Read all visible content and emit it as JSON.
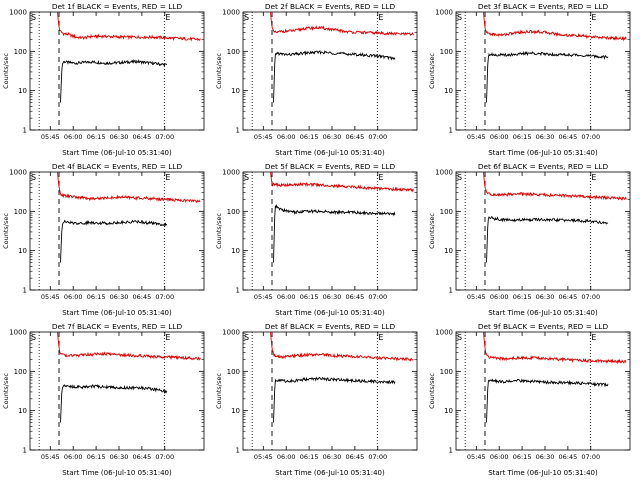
{
  "colors": {
    "events": "#000000",
    "lld": "#dd0000",
    "axis": "#000000",
    "background": "#ffffff"
  },
  "shared": {
    "ylabel": "Counts/sec",
    "xlabel": "Start Time (06-Jul-10 05:31:40)",
    "x_tick_labels_a": [
      "05:45",
      "06:00",
      "06:15",
      "06:30",
      "06:45",
      "07:00"
    ],
    "x_tick_labels_b": [
      "05:45",
      "06:00",
      "06:15",
      "06:30",
      "06:45",
      "07:00"
    ],
    "y_tick_labels": [
      "1",
      "10",
      "100",
      "1000"
    ],
    "marker_S": "S",
    "marker_E": "E"
  },
  "chart_data": [
    {
      "type": "line",
      "title": "Det 1f BLACK = Events, RED = LLD",
      "x_unit": "minutes after 05:31:40",
      "xlim": [
        0,
        114
      ],
      "ylim": [
        1,
        1000
      ],
      "yscale": "log",
      "x_ticks": [
        13.3,
        28.3,
        43.3,
        58.3,
        73.3,
        88.3
      ],
      "vline_dotted": [
        6,
        88
      ],
      "vline_dashed": 19,
      "start_marker_x": 0,
      "end_marker_x": 88,
      "series": [
        {
          "name": "Events",
          "color": "black",
          "x": [
            20,
            21,
            22,
            25,
            30,
            35,
            40,
            50,
            60,
            70,
            80,
            90
          ],
          "y": [
            5,
            45,
            55,
            52,
            50,
            52,
            54,
            50,
            52,
            55,
            50,
            45
          ]
        },
        {
          "name": "LLD",
          "color": "red",
          "x": [
            18,
            18.5,
            19,
            20,
            22,
            25,
            30,
            35,
            40,
            50,
            60,
            70,
            80,
            90,
            100,
            112
          ],
          "y": [
            1000,
            600,
            400,
            320,
            280,
            270,
            230,
            220,
            240,
            240,
            230,
            230,
            230,
            220,
            210,
            200
          ]
        }
      ]
    },
    {
      "type": "line",
      "title": "Det 2f BLACK = Events, RED = LLD",
      "x_unit": "minutes after 05:31:40",
      "xlim": [
        0,
        114
      ],
      "ylim": [
        1,
        1000
      ],
      "yscale": "log",
      "x_ticks": [
        13.3,
        28.3,
        43.3,
        58.3,
        73.3,
        88.3
      ],
      "vline_dotted": [
        6,
        88
      ],
      "vline_dashed": 19,
      "start_marker_x": 0,
      "end_marker_x": 88,
      "series": [
        {
          "name": "Events",
          "color": "black",
          "x": [
            20,
            21,
            22,
            25,
            30,
            35,
            40,
            50,
            60,
            70,
            80,
            90,
            100
          ],
          "y": [
            5,
            80,
            90,
            85,
            82,
            85,
            90,
            95,
            90,
            85,
            80,
            75,
            65
          ]
        },
        {
          "name": "LLD",
          "color": "red",
          "x": [
            18,
            18.5,
            19,
            20,
            22,
            25,
            30,
            35,
            40,
            50,
            60,
            70,
            80,
            90,
            100,
            112
          ],
          "y": [
            1000,
            600,
            400,
            310,
            300,
            320,
            330,
            340,
            380,
            400,
            350,
            310,
            300,
            290,
            280,
            270
          ]
        }
      ]
    },
    {
      "type": "line",
      "title": "Det 3f BLACK = Events, RED = LLD",
      "x_unit": "minutes after 05:31:40",
      "xlim": [
        0,
        114
      ],
      "ylim": [
        1,
        1000
      ],
      "yscale": "log",
      "x_ticks": [
        13.3,
        28.3,
        43.3,
        58.3,
        73.3,
        88.3
      ],
      "vline_dotted": [
        6,
        88
      ],
      "vline_dashed": 19,
      "start_marker_x": 0,
      "end_marker_x": 88,
      "series": [
        {
          "name": "Events",
          "color": "black",
          "x": [
            20,
            21,
            22,
            25,
            30,
            35,
            40,
            50,
            60,
            70,
            80,
            90,
            100
          ],
          "y": [
            5,
            75,
            85,
            82,
            80,
            82,
            85,
            90,
            85,
            82,
            80,
            75,
            70
          ]
        },
        {
          "name": "LLD",
          "color": "red",
          "x": [
            18,
            18.5,
            19,
            20,
            22,
            25,
            30,
            35,
            40,
            50,
            60,
            70,
            80,
            90,
            100,
            112
          ],
          "y": [
            1000,
            600,
            400,
            300,
            280,
            270,
            260,
            280,
            300,
            320,
            300,
            260,
            250,
            230,
            220,
            210
          ]
        }
      ]
    },
    {
      "type": "line",
      "title": "Det 4f BLACK = Events, RED = LLD",
      "x_unit": "minutes after 05:31:40",
      "xlim": [
        0,
        114
      ],
      "ylim": [
        1,
        1000
      ],
      "yscale": "log",
      "x_ticks": [
        13.3,
        28.3,
        43.3,
        58.3,
        73.3,
        88.3
      ],
      "vline_dotted": [
        6,
        88
      ],
      "vline_dashed": 19,
      "start_marker_x": 0,
      "end_marker_x": 88,
      "series": [
        {
          "name": "Events",
          "color": "black",
          "x": [
            20,
            21,
            22,
            25,
            30,
            35,
            40,
            50,
            60,
            70,
            80,
            90
          ],
          "y": [
            5,
            45,
            55,
            52,
            50,
            50,
            52,
            50,
            52,
            55,
            50,
            45
          ]
        },
        {
          "name": "LLD",
          "color": "red",
          "x": [
            18,
            18.5,
            19,
            20,
            22,
            25,
            30,
            35,
            40,
            50,
            60,
            70,
            80,
            90,
            100,
            112
          ],
          "y": [
            1000,
            600,
            400,
            280,
            250,
            240,
            230,
            220,
            210,
            220,
            230,
            220,
            210,
            200,
            190,
            180
          ]
        }
      ]
    },
    {
      "type": "line",
      "title": "Det 5f BLACK = Events, RED = LLD",
      "x_unit": "minutes after 05:31:40",
      "xlim": [
        0,
        114
      ],
      "ylim": [
        1,
        1000
      ],
      "yscale": "log",
      "x_ticks": [
        13.3,
        28.3,
        43.3,
        58.3,
        73.3,
        88.3
      ],
      "vline_dotted": [
        6,
        88
      ],
      "vline_dashed": 19,
      "start_marker_x": 0,
      "end_marker_x": 88,
      "series": [
        {
          "name": "Events",
          "color": "black",
          "x": [
            20,
            21,
            22,
            25,
            30,
            35,
            40,
            50,
            60,
            70,
            80,
            90,
            100
          ],
          "y": [
            5,
            140,
            130,
            110,
            100,
            95,
            100,
            100,
            95,
            95,
            90,
            90,
            85
          ]
        },
        {
          "name": "LLD",
          "color": "red",
          "x": [
            18,
            18.5,
            19,
            20,
            22,
            25,
            30,
            35,
            40,
            50,
            60,
            70,
            80,
            90,
            100,
            112
          ],
          "y": [
            1000,
            700,
            500,
            480,
            470,
            460,
            460,
            480,
            490,
            470,
            440,
            420,
            400,
            380,
            360,
            350
          ]
        }
      ]
    },
    {
      "type": "line",
      "title": "Det 6f BLACK = Events, RED = LLD",
      "x_unit": "minutes after 05:31:40",
      "xlim": [
        0,
        114
      ],
      "ylim": [
        1,
        1000
      ],
      "yscale": "log",
      "x_ticks": [
        13.3,
        28.3,
        43.3,
        58.3,
        73.3,
        88.3
      ],
      "vline_dotted": [
        6,
        88
      ],
      "vline_dashed": 19,
      "start_marker_x": 0,
      "end_marker_x": 88,
      "series": [
        {
          "name": "Events",
          "color": "black",
          "x": [
            20,
            21,
            22,
            25,
            30,
            35,
            40,
            50,
            60,
            70,
            80,
            90,
            100
          ],
          "y": [
            5,
            65,
            70,
            65,
            62,
            60,
            60,
            62,
            60,
            60,
            58,
            55,
            50
          ]
        },
        {
          "name": "LLD",
          "color": "red",
          "x": [
            18,
            18.5,
            19,
            20,
            22,
            25,
            30,
            35,
            40,
            50,
            60,
            70,
            80,
            90,
            100,
            112
          ],
          "y": [
            1000,
            600,
            400,
            300,
            280,
            260,
            260,
            270,
            280,
            270,
            260,
            250,
            240,
            230,
            220,
            210
          ]
        }
      ]
    },
    {
      "type": "line",
      "title": "Det 7f BLACK = Events, RED = LLD",
      "x_unit": "minutes after 05:31:40",
      "xlim": [
        0,
        114
      ],
      "ylim": [
        1,
        1000
      ],
      "yscale": "log",
      "x_ticks": [
        13.3,
        28.3,
        43.3,
        58.3,
        73.3,
        88.3
      ],
      "vline_dotted": [
        6,
        88
      ],
      "vline_dashed": 19,
      "start_marker_x": 0,
      "end_marker_x": 88,
      "series": [
        {
          "name": "Events",
          "color": "black",
          "x": [
            20,
            21,
            22,
            25,
            30,
            35,
            40,
            50,
            60,
            70,
            80,
            90
          ],
          "y": [
            5,
            40,
            45,
            42,
            40,
            40,
            42,
            40,
            38,
            38,
            36,
            30
          ]
        },
        {
          "name": "LLD",
          "color": "red",
          "x": [
            18,
            18.5,
            19,
            20,
            22,
            25,
            30,
            35,
            40,
            50,
            60,
            70,
            80,
            90,
            100,
            112
          ],
          "y": [
            1000,
            600,
            400,
            280,
            260,
            250,
            250,
            260,
            270,
            280,
            260,
            250,
            240,
            230,
            220,
            210
          ]
        }
      ]
    },
    {
      "type": "line",
      "title": "Det 8f BLACK = Events, RED = LLD",
      "x_unit": "minutes after 05:31:40",
      "xlim": [
        0,
        114
      ],
      "ylim": [
        1,
        1000
      ],
      "yscale": "log",
      "x_ticks": [
        13.3,
        28.3,
        43.3,
        58.3,
        73.3,
        88.3
      ],
      "vline_dotted": [
        6,
        88
      ],
      "vline_dashed": 19,
      "start_marker_x": 0,
      "end_marker_x": 88,
      "series": [
        {
          "name": "Events",
          "color": "black",
          "x": [
            20,
            21,
            22,
            25,
            30,
            35,
            40,
            50,
            60,
            70,
            80,
            90,
            100
          ],
          "y": [
            5,
            55,
            60,
            58,
            56,
            58,
            62,
            65,
            62,
            58,
            56,
            55,
            52
          ]
        },
        {
          "name": "LLD",
          "color": "red",
          "x": [
            18,
            18.5,
            19,
            20,
            22,
            25,
            30,
            35,
            40,
            50,
            60,
            70,
            80,
            90,
            100,
            112
          ],
          "y": [
            1000,
            600,
            400,
            260,
            240,
            230,
            240,
            250,
            260,
            270,
            250,
            240,
            230,
            220,
            210,
            200
          ]
        }
      ]
    },
    {
      "type": "line",
      "title": "Det 9f BLACK = Events, RED = LLD",
      "x_unit": "minutes after 05:31:40",
      "xlim": [
        0,
        114
      ],
      "ylim": [
        1,
        1000
      ],
      "yscale": "log",
      "x_ticks": [
        13.3,
        28.3,
        43.3,
        58.3,
        73.3,
        88.3
      ],
      "vline_dotted": [
        6,
        88
      ],
      "vline_dashed": 19,
      "start_marker_x": 0,
      "end_marker_x": 88,
      "series": [
        {
          "name": "Events",
          "color": "black",
          "x": [
            20,
            21,
            22,
            25,
            30,
            35,
            40,
            50,
            60,
            70,
            80,
            90,
            100
          ],
          "y": [
            5,
            55,
            60,
            58,
            55,
            55,
            58,
            55,
            52,
            52,
            50,
            48,
            45
          ]
        },
        {
          "name": "LLD",
          "color": "red",
          "x": [
            18,
            18.5,
            19,
            20,
            22,
            25,
            30,
            35,
            40,
            50,
            60,
            70,
            80,
            90,
            100,
            112
          ],
          "y": [
            1000,
            600,
            400,
            260,
            230,
            220,
            210,
            210,
            220,
            220,
            210,
            200,
            190,
            185,
            180,
            175
          ]
        }
      ]
    }
  ]
}
